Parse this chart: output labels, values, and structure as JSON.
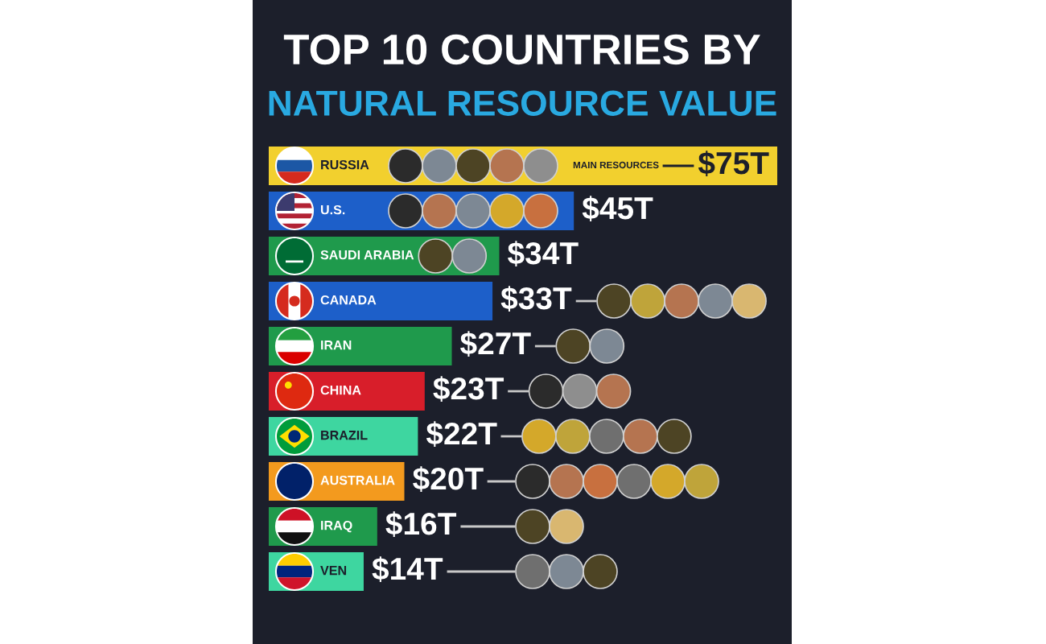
{
  "chart_data": {
    "type": "bar",
    "orientation": "horizontal",
    "title": "TOP 10 COUNTRIES BY",
    "subtitle": "NATURAL RESOURCE VALUE",
    "categories": [
      "RUSSIA",
      "U.S.",
      "SAUDI ARABIA",
      "CANADA",
      "IRAN",
      "CHINA",
      "BRAZIL",
      "AUSTRALIA",
      "IRAQ",
      "VEN"
    ],
    "values": [
      75,
      45,
      34,
      33,
      27,
      23,
      22,
      20,
      16,
      14
    ],
    "colors": [
      "#f2d02e",
      "#1d5fc9",
      "#1f9a4c",
      "#1d5fc9",
      "#1f9a4c",
      "#d81e2a",
      "#3ed6a0",
      "#f39a1e",
      "#1f9a4c",
      "#3ed6a0"
    ],
    "value_labels": [
      "$75T",
      "$45T",
      "$34T",
      "$33T",
      "$27T",
      "$23T",
      "$22T",
      "$20T",
      "$16T",
      "$14T"
    ],
    "annotations": [
      "MAIN RESOURCES"
    ]
  }
}
